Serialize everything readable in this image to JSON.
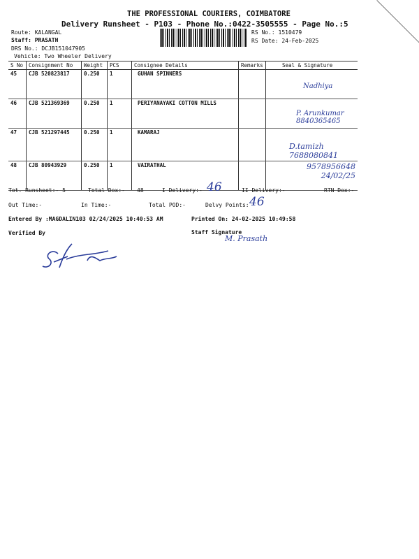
{
  "header": {
    "company": "THE PROFESSIONAL COURIERS, COIMBATORE",
    "subtitle": "Delivery Runsheet - P103 - Phone No.:0422-3505555 - Page No.:5",
    "route": "Route: KALANGAL",
    "staff": "Staff: PRASATH",
    "drs": "DRS No.: DCJB151047905",
    "vehicle": "Vehicle: Two Wheeler Delivery",
    "rs_no": "RS No.: 1510479",
    "rs_date": "RS Date: 24-Feb-2025"
  },
  "table": {
    "columns": [
      "S No",
      "Consignment No",
      "Weight",
      "PCS",
      "Consignee Details",
      "Remarks",
      "Seal & Signature"
    ],
    "rows": [
      {
        "sno": "45",
        "cons": "CJB 520823817",
        "weight": "0.250",
        "pcs": "1",
        "consignee": "GUHAN SPINNERS",
        "remarks": "",
        "sign": "Nadhiya"
      },
      {
        "sno": "46",
        "cons": "CJB 521369369",
        "weight": "0.250",
        "pcs": "1",
        "consignee": "PERIYANAYAKI COTTON MILLS",
        "remarks": "",
        "sign": "P. Arunkumar 8840365465"
      },
      {
        "sno": "47",
        "cons": "CJB 521297445",
        "weight": "0.250",
        "pcs": "1",
        "consignee": "KAMARAJ",
        "remarks": "",
        "sign": "D.tamizh 7688080841"
      },
      {
        "sno": "48",
        "cons": "CJB 80943929",
        "weight": "0.250",
        "pcs": "1",
        "consignee": "VAIRATHAL",
        "remarks": "",
        "sign": "9578956648 24/02/25"
      }
    ]
  },
  "footer": {
    "tot_runsheet": "Tot. Runsheet:- 5",
    "total_dox": "Total Dox:-",
    "total_dox_val": "48",
    "i_delivery": "I Delivery:-",
    "i_delivery_val": "46",
    "ii_delivery": "II Delivery:-",
    "rtn_dox": "RTN Dox:-",
    "out_time": "Out Time:-",
    "in_time": "In Time:-",
    "total_pod": "Total POD:-",
    "delvy_points": "Delvy Points:",
    "delvy_points_val": "46",
    "entered_by": "Entered By :MAGDALIN103 02/24/2025 10:40:53 AM",
    "printed_on": "Printed On: 24-02-2025 10:49:58",
    "verified_by": "Verified By",
    "staff_signature": "Staff Signature",
    "staff_sign_hand": "M. Prasath"
  }
}
